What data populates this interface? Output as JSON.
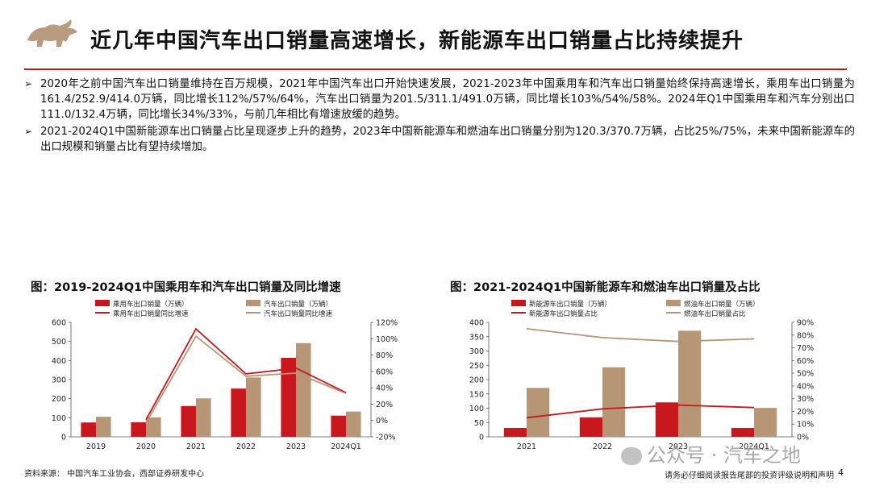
{
  "header": {
    "title": "近几年中国汽车出口销量高速增长，新能源车出口销量占比持续提升"
  },
  "bullets": [
    "2020年之前中国汽车出口销量维持在百万规模，2021年中国汽车出口开始快速发展，2021-2023年中国乘用车和汽车出口销量始终保持高速增长，乘用车出口销量为161.4/252.9/414.0万辆，同比增长112%/57%/64%，汽车出口销量为201.5/311.1/491.0万辆，同比增长103%/54%/58%。2024年Q1中国乘用车和汽车分别出口111.0/132.4万辆，同比增长34%/33%，与前几年相比有增速放缓的趋势。",
    "2021-2024Q1中国新能源车出口销量占比呈现逐步上升的趋势，2023年中国新能源车和燃油车出口销量分别为120.3/370.7万辆，占比25%/75%，未来中国新能源车的出口规模和销量占比有望持续增加。"
  ],
  "bullet_marker": "➢",
  "charts": {
    "left_title": "图：2019-2024Q1中国乘用车和汽车出口销量及同比增速",
    "right_title": "图：2021-2024Q1中国新能源车和燃油车出口销量及占比"
  },
  "chart_data": [
    {
      "type": "bar",
      "title": "图：2019-2024Q1中国乘用车和汽车出口销量及同比增速",
      "categories": [
        "2019",
        "2020",
        "2021",
        "2022",
        "2023",
        "2024Q1"
      ],
      "ylim": [
        0,
        600
      ],
      "y_ticks": [
        "0",
        "100",
        "200",
        "300",
        "400",
        "500",
        "600"
      ],
      "y2lim": [
        -20,
        120
      ],
      "y2_ticks": [
        "-20%",
        "0%",
        "20%",
        "40%",
        "60%",
        "80%",
        "100%",
        "120%"
      ],
      "series": [
        {
          "name": "乘用车出口销量（万辆）",
          "kind": "bar",
          "axis": "left",
          "color": "#c8171d",
          "values": [
            75,
            76,
            161.4,
            252.9,
            414.0,
            111.0
          ]
        },
        {
          "name": "汽车出口销量（万辆）",
          "kind": "bar",
          "axis": "left",
          "color": "#b79675",
          "values": [
            105,
            102,
            201.5,
            311.1,
            491.0,
            132.4
          ]
        },
        {
          "name": "乘用车出口销量同比增速",
          "kind": "line",
          "axis": "right",
          "color": "#c8171d",
          "values": [
            null,
            1,
            112,
            57,
            64,
            34
          ]
        },
        {
          "name": "汽车出口销量同比增速",
          "kind": "line",
          "axis": "right",
          "color": "#b79675",
          "values": [
            null,
            -3,
            103,
            54,
            58,
            33
          ]
        }
      ],
      "legend_position": "top"
    },
    {
      "type": "bar",
      "title": "图：2021-2024Q1中国新能源车和燃油车出口销量及占比",
      "categories": [
        "2021",
        "2022",
        "2023",
        "2024Q1"
      ],
      "ylim": [
        0,
        400
      ],
      "y_ticks": [
        "0",
        "50",
        "100",
        "150",
        "200",
        "250",
        "300",
        "350",
        "400"
      ],
      "y2lim": [
        0,
        90
      ],
      "y2_ticks": [
        "0%",
        "10%",
        "20%",
        "30%",
        "40%",
        "50%",
        "60%",
        "70%",
        "80%",
        "90%"
      ],
      "series": [
        {
          "name": "新能源车出口销量（万辆）",
          "kind": "bar",
          "axis": "left",
          "color": "#c8171d",
          "values": [
            31,
            68,
            120.3,
            31
          ]
        },
        {
          "name": "燃油车出口销量（万辆）",
          "kind": "bar",
          "axis": "left",
          "color": "#b79675",
          "values": [
            171,
            243,
            370.7,
            101
          ]
        },
        {
          "name": "新能源车出口销量占比",
          "kind": "line",
          "axis": "right",
          "color": "#c8171d",
          "values": [
            15,
            22,
            25,
            23
          ]
        },
        {
          "name": "燃油车出口销量占比",
          "kind": "line",
          "axis": "right",
          "color": "#b79675",
          "values": [
            85,
            78,
            75,
            77
          ]
        }
      ],
      "legend_position": "top"
    }
  ],
  "footer": {
    "source": "资料来源：  中国汽车工业协会，西部证券研发中心",
    "disclaimer": "请务必仔细阅读报告尾部的投资评级说明和声明",
    "page": "4",
    "watermark": "公众号 · 汽车之地"
  }
}
